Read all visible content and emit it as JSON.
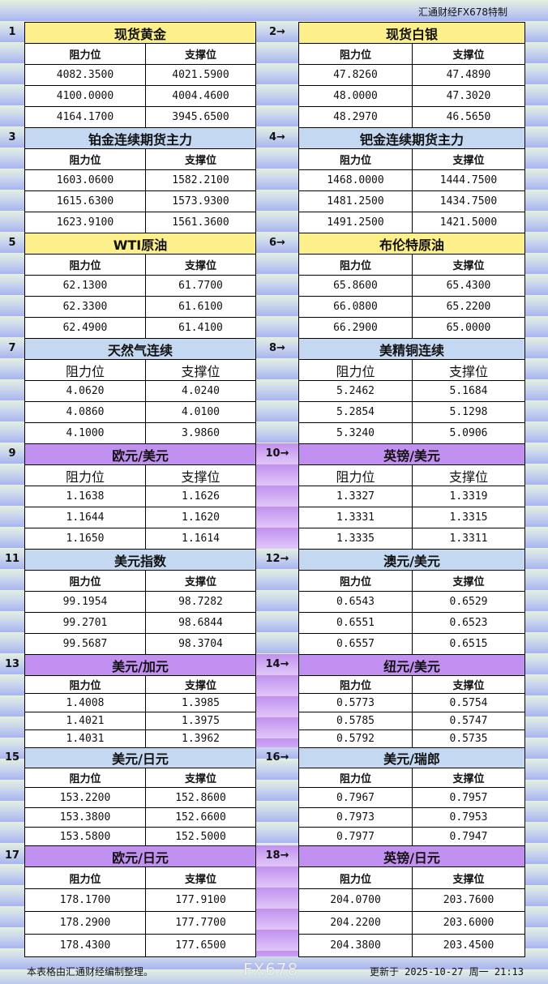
{
  "brand": "汇通财经FX678特制",
  "colors": {
    "gold": "#fdf08a",
    "blue": "#c4d8f2",
    "purple": "#c290f0"
  },
  "headers": {
    "resistance": "阻力位",
    "support": "支撑位"
  },
  "sections": [
    {
      "left": {
        "num": "1",
        "name": "现货黄金",
        "rows": [
          [
            "4082.3500",
            "4021.5900"
          ],
          [
            "4100.0000",
            "4004.4600"
          ],
          [
            "4164.1700",
            "3945.6500"
          ]
        ]
      },
      "right": {
        "num": "2→",
        "name": "现货白银",
        "rows": [
          [
            "47.8260",
            "47.4890"
          ],
          [
            "48.0000",
            "47.3020"
          ],
          [
            "48.2970",
            "46.5650"
          ]
        ]
      },
      "color": "gold"
    },
    {
      "left": {
        "num": "3",
        "name": "铂金连续期货主力",
        "rows": [
          [
            "1603.0600",
            "1582.2100"
          ],
          [
            "1615.6300",
            "1573.9300"
          ],
          [
            "1623.9100",
            "1561.3600"
          ]
        ]
      },
      "right": {
        "num": "4→",
        "name": "钯金连续期货主力",
        "rows": [
          [
            "1468.0000",
            "1444.7500"
          ],
          [
            "1481.2500",
            "1434.7500"
          ],
          [
            "1491.2500",
            "1421.5000"
          ]
        ]
      },
      "color": "blue"
    },
    {
      "left": {
        "num": "5",
        "name": "WTI原油",
        "rows": [
          [
            "62.1300",
            "61.7700"
          ],
          [
            "62.3300",
            "61.6100"
          ],
          [
            "62.4900",
            "61.4100"
          ]
        ]
      },
      "right": {
        "num": "6→",
        "name": "布伦特原油",
        "rows": [
          [
            "65.8600",
            "65.4300"
          ],
          [
            "66.0800",
            "65.2200"
          ],
          [
            "66.2900",
            "65.0000"
          ]
        ]
      },
      "color": "gold"
    },
    {
      "left": {
        "num": "7",
        "name": "天然气连续",
        "rows": [
          [
            "4.0620",
            "4.0240"
          ],
          [
            "4.0860",
            "4.0100"
          ],
          [
            "4.1000",
            "3.9860"
          ]
        ]
      },
      "right": {
        "num": "8→",
        "name": "美精铜连续",
        "rows": [
          [
            "5.2462",
            "5.1684"
          ],
          [
            "5.2854",
            "5.1298"
          ],
          [
            "5.3240",
            "5.0906"
          ]
        ]
      },
      "color": "blue"
    },
    {
      "left": {
        "num": "9",
        "name": "欧元/美元",
        "rows": [
          [
            "1.1638",
            "1.1626"
          ],
          [
            "1.1644",
            "1.1620"
          ],
          [
            "1.1650",
            "1.1614"
          ]
        ]
      },
      "right": {
        "num": "10→",
        "name": "英镑/美元",
        "rows": [
          [
            "1.3327",
            "1.3319"
          ],
          [
            "1.3331",
            "1.3315"
          ],
          [
            "1.3335",
            "1.3311"
          ]
        ]
      },
      "color": "purple"
    },
    {
      "left": {
        "num": "11",
        "name": "美元指数",
        "rows": [
          [
            "99.1954",
            "98.7282"
          ],
          [
            "99.2701",
            "98.6844"
          ],
          [
            "99.5687",
            "98.3704"
          ]
        ]
      },
      "right": {
        "num": "12→",
        "name": "澳元/美元",
        "rows": [
          [
            "0.6543",
            "0.6529"
          ],
          [
            "0.6551",
            "0.6523"
          ],
          [
            "0.6557",
            "0.6515"
          ]
        ]
      },
      "color": "blue"
    },
    {
      "left": {
        "num": "13",
        "name": "美元/加元",
        "rows": [
          [
            "1.4008",
            "1.3985"
          ],
          [
            "1.4021",
            "1.3975"
          ],
          [
            "1.4031",
            "1.3962"
          ]
        ]
      },
      "right": {
        "num": "14→",
        "name": "纽元/美元",
        "rows": [
          [
            "0.5773",
            "0.5754"
          ],
          [
            "0.5785",
            "0.5747"
          ],
          [
            "0.5792",
            "0.5735"
          ]
        ]
      },
      "color": "purple"
    },
    {
      "left": {
        "num": "15",
        "name": "美元/日元",
        "rows": [
          [
            "153.2200",
            "152.8600"
          ],
          [
            "153.3800",
            "152.6600"
          ],
          [
            "153.5800",
            "152.5000"
          ]
        ]
      },
      "right": {
        "num": "16→",
        "name": "美元/瑞郎",
        "rows": [
          [
            "0.7967",
            "0.7957"
          ],
          [
            "0.7973",
            "0.7953"
          ],
          [
            "0.7977",
            "0.7947"
          ]
        ]
      },
      "color": "blue"
    },
    {
      "left": {
        "num": "17",
        "name": "欧元/日元",
        "rows": [
          [
            "178.1700",
            "177.9100"
          ],
          [
            "178.2900",
            "177.7700"
          ],
          [
            "178.4300",
            "177.6500"
          ]
        ]
      },
      "right": {
        "num": "18→",
        "name": "英镑/日元",
        "rows": [
          [
            "204.0700",
            "203.7600"
          ],
          [
            "204.2200",
            "203.6000"
          ],
          [
            "204.3800",
            "203.4500"
          ]
        ]
      },
      "color": "purple"
    }
  ],
  "footer": {
    "note": "本表格由汇通财经编制整理。",
    "updated": "更新于 2025-10-27 周一 21:13"
  },
  "watermark": "FX678"
}
